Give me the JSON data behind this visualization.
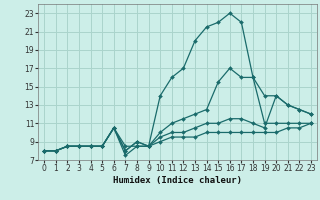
{
  "title": "",
  "xlabel": "Humidex (Indice chaleur)",
  "ylabel": "",
  "background_color": "#cceee8",
  "grid_color": "#aad4cc",
  "line_color": "#1a6b6b",
  "xlim": [
    -0.5,
    23.5
  ],
  "ylim": [
    7,
    24
  ],
  "xticks": [
    0,
    1,
    2,
    3,
    4,
    5,
    6,
    7,
    8,
    9,
    10,
    11,
    12,
    13,
    14,
    15,
    16,
    17,
    18,
    19,
    20,
    21,
    22,
    23
  ],
  "yticks": [
    7,
    9,
    11,
    13,
    15,
    17,
    19,
    21,
    23
  ],
  "series": [
    {
      "x": [
        0,
        1,
        2,
        3,
        4,
        5,
        6,
        7,
        8,
        9,
        10,
        11,
        12,
        13,
        14,
        15,
        16,
        17,
        18,
        19,
        20,
        21,
        22,
        23
      ],
      "y": [
        8,
        8,
        8.5,
        8.5,
        8.5,
        8.5,
        10.5,
        8,
        9,
        8.5,
        14,
        16,
        17,
        20,
        21.5,
        22,
        23,
        22,
        16,
        11,
        11,
        11,
        11,
        11
      ]
    },
    {
      "x": [
        0,
        1,
        2,
        3,
        4,
        5,
        6,
        7,
        8,
        9,
        10,
        11,
        12,
        13,
        14,
        15,
        16,
        17,
        18,
        19,
        20,
        21,
        22,
        23
      ],
      "y": [
        8,
        8,
        8.5,
        8.5,
        8.5,
        8.5,
        10.5,
        8,
        9,
        8.5,
        10,
        11,
        11.5,
        12,
        12.5,
        15.5,
        17,
        16,
        16,
        14,
        14,
        13,
        12.5,
        12
      ]
    },
    {
      "x": [
        0,
        1,
        2,
        3,
        4,
        5,
        6,
        7,
        8,
        9,
        10,
        11,
        12,
        13,
        14,
        15,
        16,
        17,
        18,
        19,
        20,
        21,
        22,
        23
      ],
      "y": [
        8,
        8,
        8.5,
        8.5,
        8.5,
        8.5,
        10.5,
        8.5,
        8.5,
        8.5,
        9.5,
        10,
        10,
        10.5,
        11,
        11,
        11.5,
        11.5,
        11,
        10.5,
        14,
        13,
        12.5,
        12
      ]
    },
    {
      "x": [
        0,
        1,
        2,
        3,
        4,
        5,
        6,
        7,
        8,
        9,
        10,
        11,
        12,
        13,
        14,
        15,
        16,
        17,
        18,
        19,
        20,
        21,
        22,
        23
      ],
      "y": [
        8,
        8,
        8.5,
        8.5,
        8.5,
        8.5,
        10.5,
        7.5,
        8.5,
        8.5,
        9,
        9.5,
        9.5,
        9.5,
        10,
        10,
        10,
        10,
        10,
        10,
        10,
        10.5,
        10.5,
        11
      ]
    }
  ]
}
